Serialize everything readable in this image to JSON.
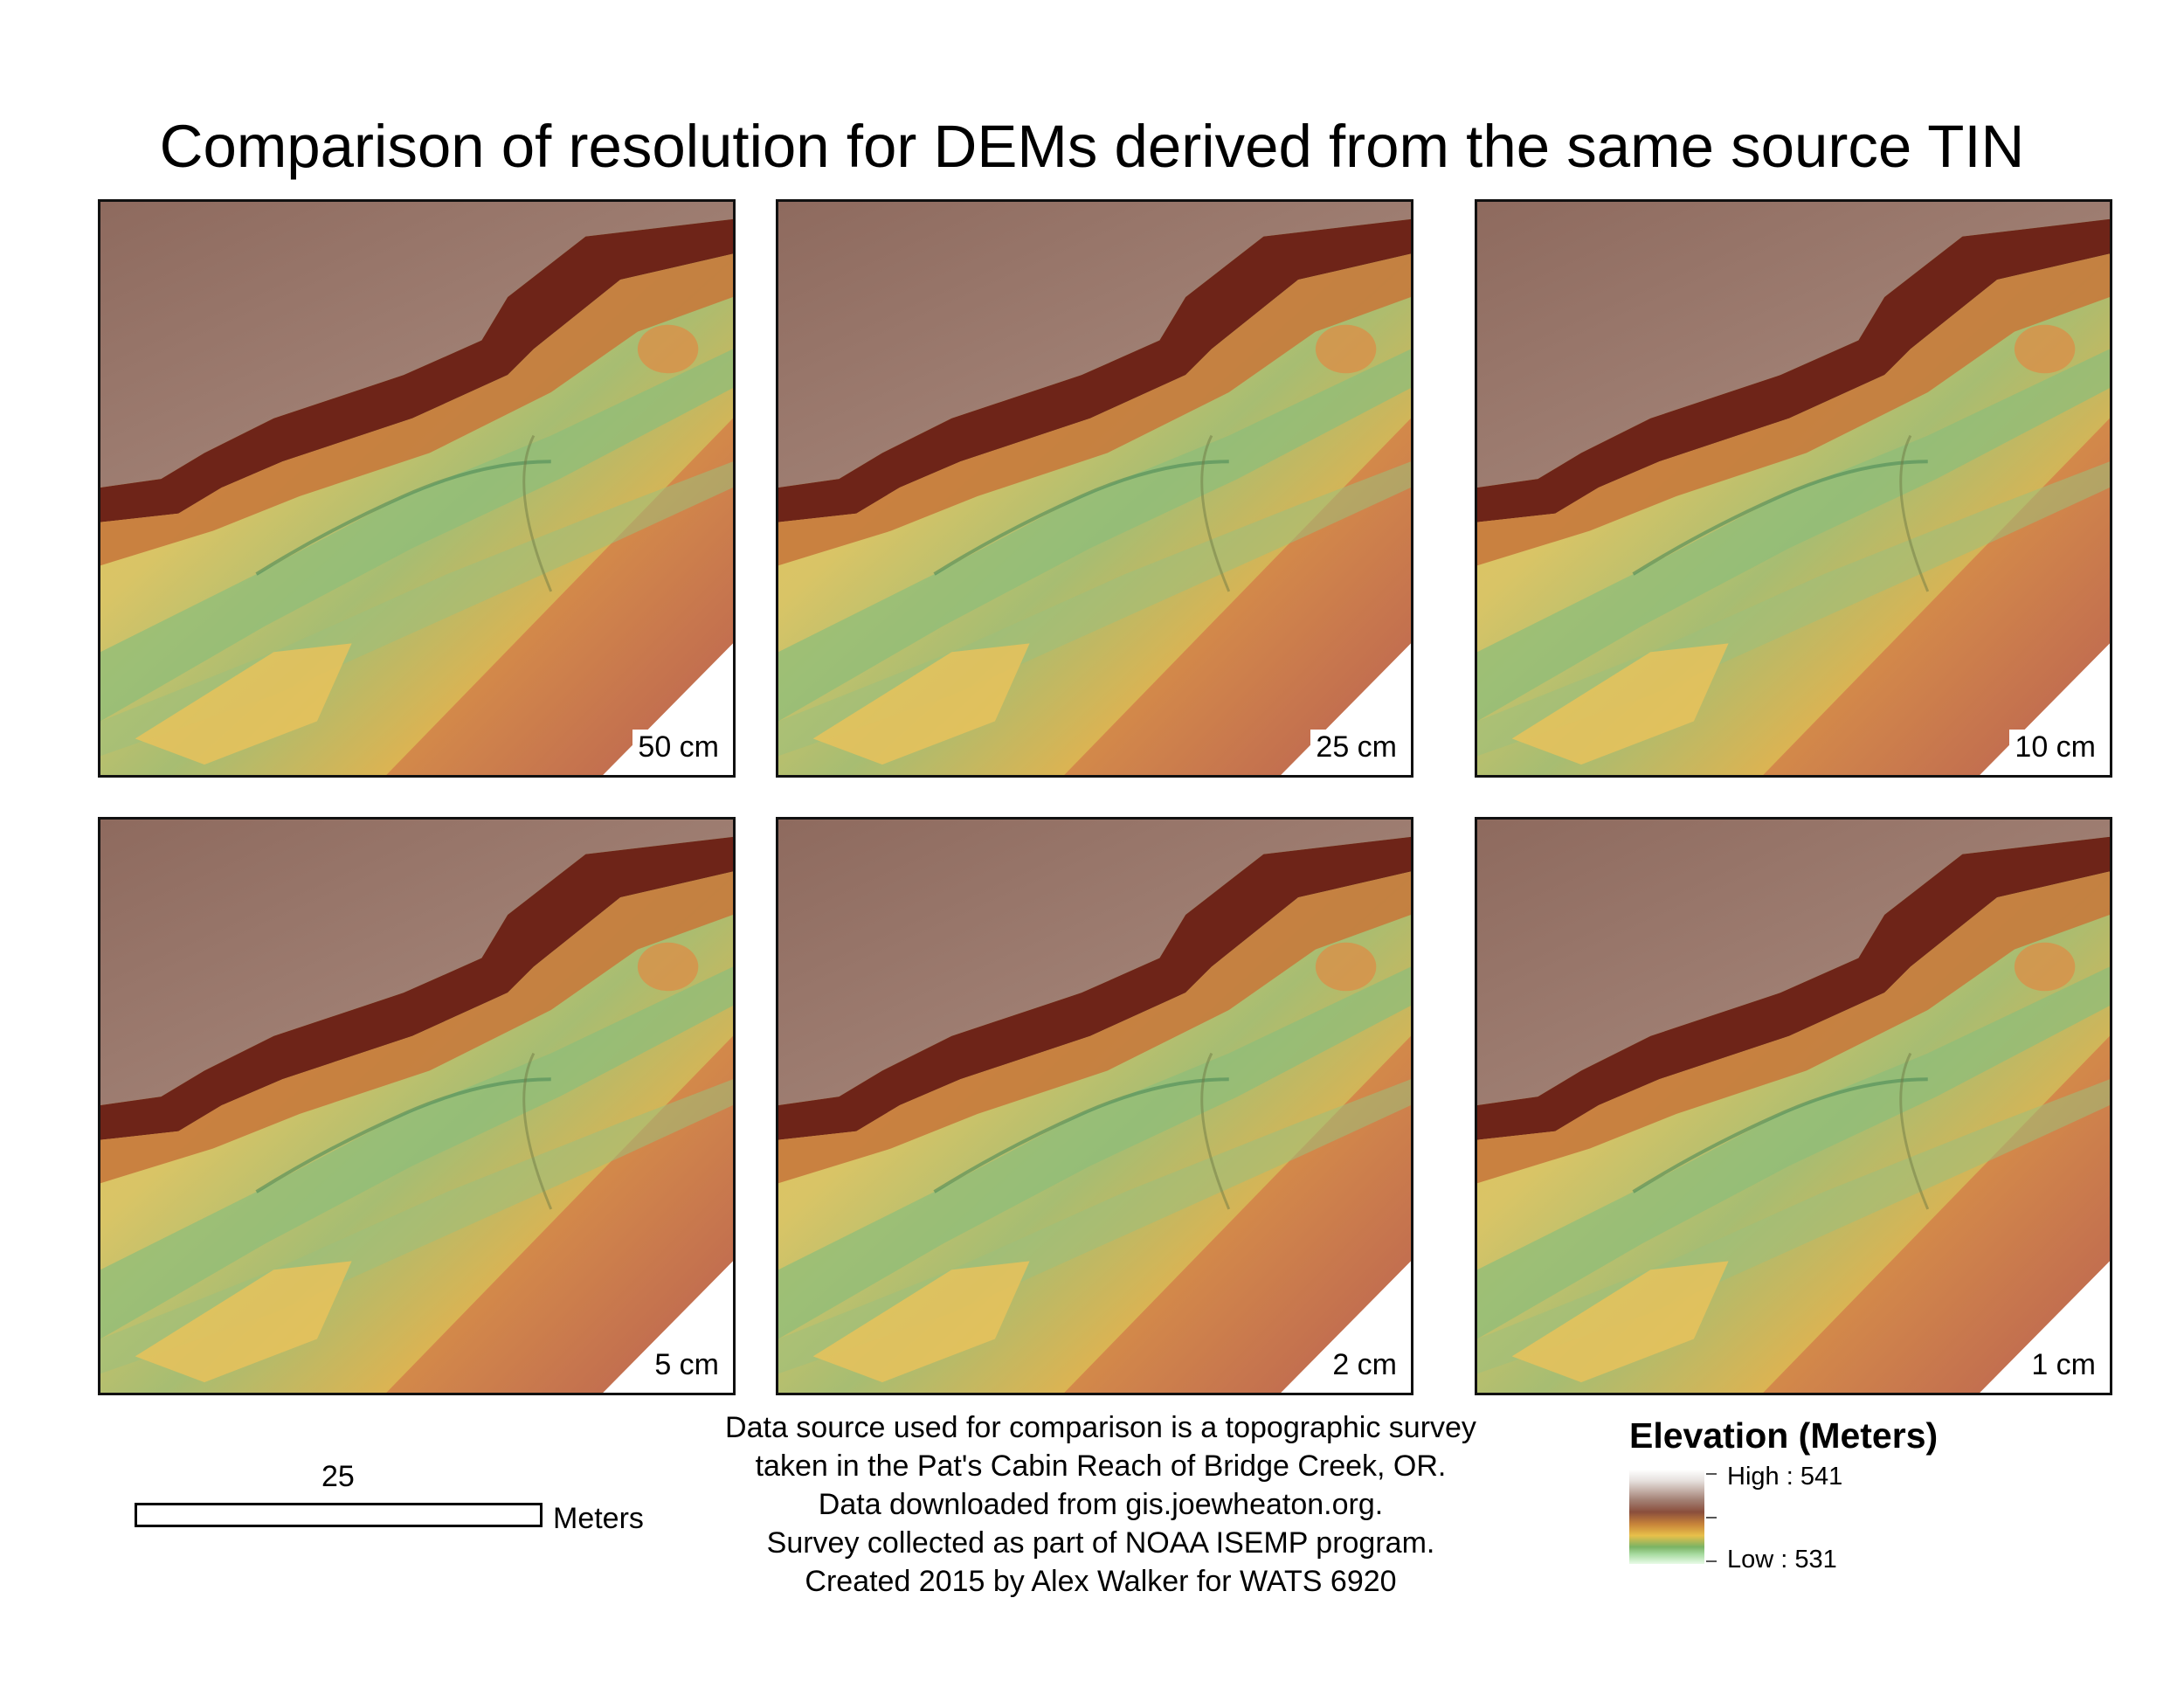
{
  "title": "Comparison of resolution for DEMs derived from the same source TIN",
  "panels": [
    {
      "resolution": "50 cm"
    },
    {
      "resolution": "25 cm"
    },
    {
      "resolution": "10 cm"
    },
    {
      "resolution": "5 cm"
    },
    {
      "resolution": "2 cm"
    },
    {
      "resolution": "1 cm"
    }
  ],
  "scale_bar": {
    "value": "25",
    "unit": "Meters"
  },
  "notes": [
    "Data source used for comparison is a topographic survey",
    "taken in the Pat's Cabin Reach of Bridge Creek, OR.",
    "Data downloaded from gis.joewheaton.org.",
    "Survey collected as part of NOAA ISEMP program.",
    "Created 2015 by Alex Walker for WATS 6920"
  ],
  "legend": {
    "title": "Elevation (Meters)",
    "high_label": "High : 541",
    "low_label": "Low : 531"
  },
  "colors": {
    "high": "#e6e0dd",
    "terrace": "#a48276",
    "bank": "#6e2418",
    "mid_high": "#c07a3e",
    "mid": "#e6bf55",
    "low": "#7eb36c",
    "lowest": "#e9fbe8"
  }
}
